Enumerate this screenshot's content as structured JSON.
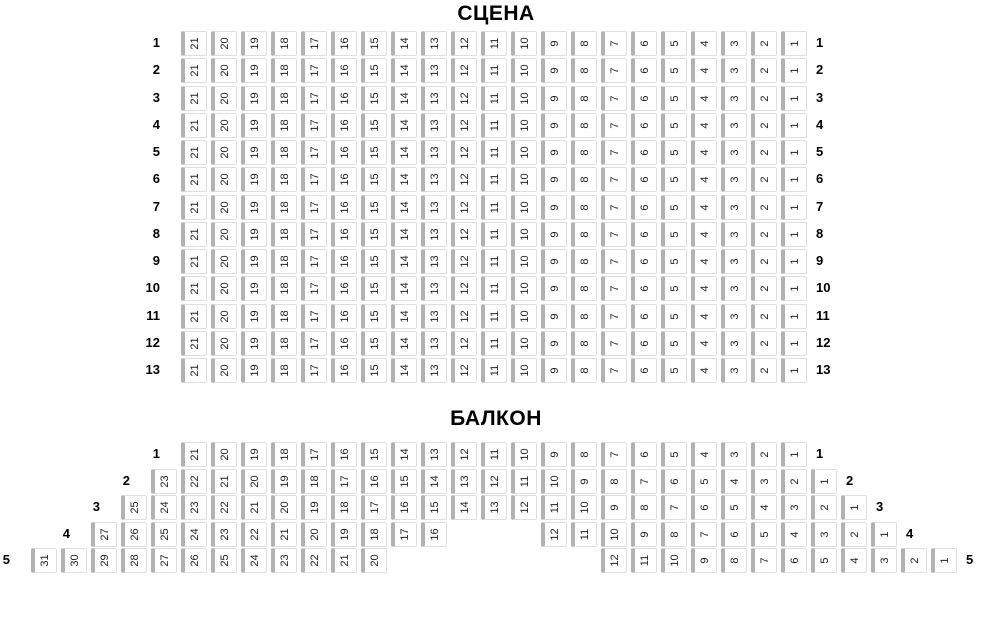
{
  "colors": {
    "seat_bar": "#b2b2b2",
    "seat_border": "#dedede",
    "seat_bg": "#ffffff",
    "number_text": "#1f1f1f",
    "label_text": "#000000"
  },
  "stage": {
    "title": "СЦЕНА"
  },
  "balcony": {
    "title": "БАЛКОН"
  },
  "main_section": {
    "rows": [
      {
        "label": "1",
        "indent": 5,
        "blocks": [
          {
            "from": 21,
            "to": 1
          }
        ]
      },
      {
        "label": "2",
        "indent": 5,
        "blocks": [
          {
            "from": 21,
            "to": 1
          }
        ]
      },
      {
        "label": "3",
        "indent": 5,
        "blocks": [
          {
            "from": 21,
            "to": 1
          }
        ]
      },
      {
        "label": "4",
        "indent": 5,
        "blocks": [
          {
            "from": 21,
            "to": 1
          }
        ]
      },
      {
        "label": "5",
        "indent": 5,
        "blocks": [
          {
            "from": 21,
            "to": 1
          }
        ]
      },
      {
        "label": "6",
        "indent": 5,
        "blocks": [
          {
            "from": 21,
            "to": 1
          }
        ]
      },
      {
        "label": "7",
        "indent": 5,
        "blocks": [
          {
            "from": 21,
            "to": 1
          }
        ]
      },
      {
        "label": "8",
        "indent": 5,
        "blocks": [
          {
            "from": 21,
            "to": 1
          }
        ]
      },
      {
        "label": "9",
        "indent": 5,
        "blocks": [
          {
            "from": 21,
            "to": 1
          }
        ]
      },
      {
        "label": "10",
        "indent": 5,
        "blocks": [
          {
            "from": 21,
            "to": 1
          }
        ]
      },
      {
        "label": "11",
        "indent": 5,
        "blocks": [
          {
            "from": 21,
            "to": 1
          }
        ]
      },
      {
        "label": "12",
        "indent": 5,
        "blocks": [
          {
            "from": 21,
            "to": 1
          }
        ]
      },
      {
        "label": "13",
        "indent": 5,
        "blocks": [
          {
            "from": 21,
            "to": 1
          }
        ]
      }
    ]
  },
  "balcony_section": {
    "rows": [
      {
        "label": "1",
        "indent": 5,
        "blocks": [
          {
            "from": 21,
            "to": 1
          }
        ]
      },
      {
        "label": "2",
        "indent": 4,
        "blocks": [
          {
            "from": 23,
            "to": 1
          }
        ]
      },
      {
        "label": "3",
        "indent": 3,
        "blocks": [
          {
            "from": 25,
            "to": 1
          }
        ]
      },
      {
        "label": "4",
        "indent": 2,
        "blocks": [
          {
            "from": 27,
            "to": 16
          },
          {
            "gap": 3
          },
          {
            "from": 12,
            "to": 1
          }
        ]
      },
      {
        "label": "5",
        "indent": 0,
        "blocks": [
          {
            "from": 31,
            "to": 20
          },
          {
            "gap": 7
          },
          {
            "from": 12,
            "to": 1
          }
        ]
      }
    ]
  }
}
